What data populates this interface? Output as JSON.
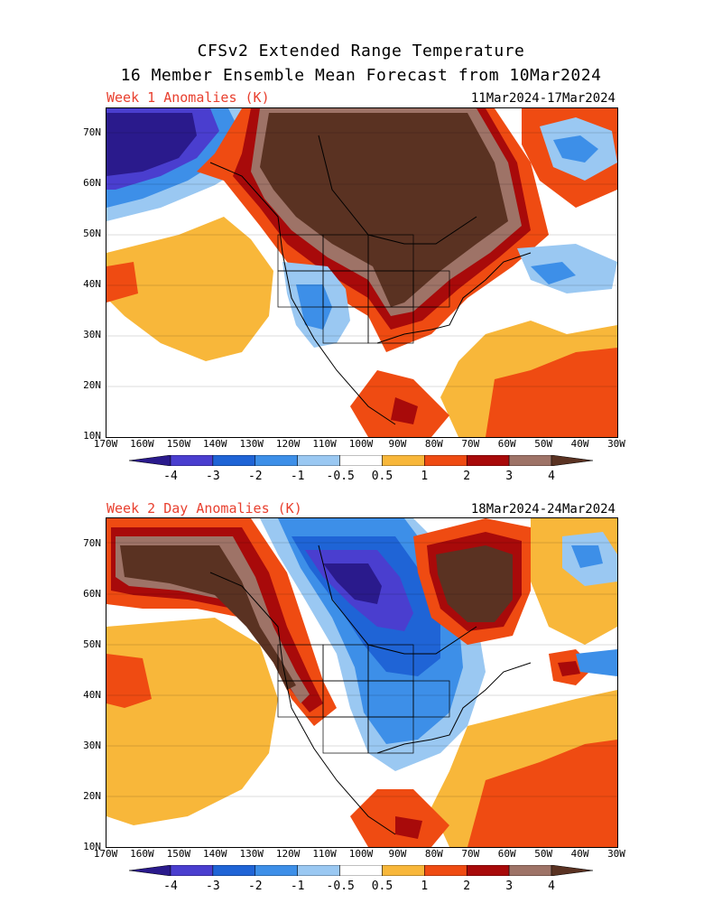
{
  "header": {
    "title_line1": "CFSv2 Extended Range Temperature",
    "title_line2": "16 Member Ensemble Mean Forecast from 10Mar2024"
  },
  "panels": [
    {
      "label": "Week 1 Anomalies (K)",
      "dates": "11Mar2024-17Mar2024"
    },
    {
      "label": "Week 2 Day Anomalies (K)",
      "dates": "18Mar2024-24Mar2024"
    }
  ],
  "axes": {
    "lat_labels": [
      "70N",
      "60N",
      "50N",
      "40N",
      "30N",
      "20N",
      "10N"
    ],
    "lon_labels": [
      "170W",
      "160W",
      "150W",
      "140W",
      "130W",
      "120W",
      "110W",
      "100W",
      "90W",
      "80W",
      "70W",
      "60W",
      "50W",
      "40W",
      "30W"
    ]
  },
  "colorbar": {
    "labels": [
      "-4",
      "-3",
      "-2",
      "-1",
      "-0.5",
      "0.5",
      "1",
      "2",
      "3",
      "4"
    ],
    "colors": [
      "#2a1a8c",
      "#4a3ecf",
      "#1f64d6",
      "#3d8fe8",
      "#9ac8f2",
      "#ffffff",
      "#f8b73a",
      "#ef4b12",
      "#a80a0a",
      "#9e7367",
      "#5a3222"
    ]
  }
}
